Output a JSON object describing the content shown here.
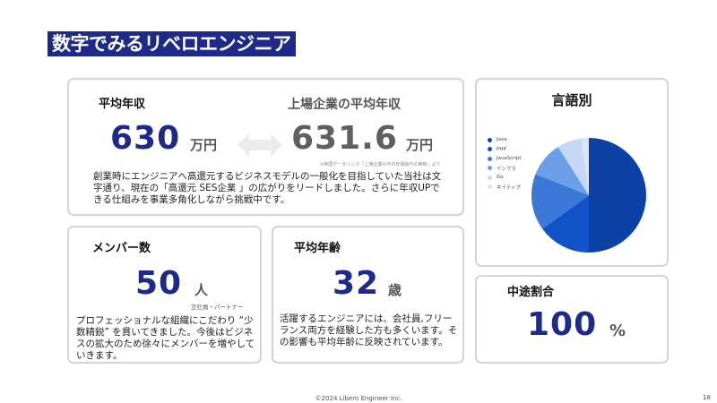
{
  "title": "数字でみるリベロエンジニア",
  "salary": {
    "label": "平均年収",
    "value": "630",
    "unit": "万円",
    "compare_label": "上場企業の平均年収",
    "compare_value": "631.6",
    "compare_unit": "万円",
    "note": "※帝国データバンク「上場企業の平均年間給与の推移」より",
    "description": "創業時にエンジニアへ高還元するビジネスモデルの一般化を目指していた当社は文字通り、現在の「高還元 SES企業 」の広がりをリードしました。さらに年収UPできる仕組みを事業多角化しながら挑戦中です。",
    "arrow_icon": "double-arrow-icon"
  },
  "members": {
    "label": "メンバー数",
    "value": "50",
    "unit": "人",
    "sub": "正社員・パートナー",
    "description": "プロフェッショナルな組織にこだわり “少数精鋭” を貫いてきました。今後はビジネスの拡大のため徐々にメンバーを増やしていきます。"
  },
  "age": {
    "label": "平均年齢",
    "value": "32",
    "unit": "歳",
    "description": "活躍するエンジニアには、会社員,フリーランス両方を経験した方も多くいます。その影響も平均年齢に反映されています。"
  },
  "midcareer": {
    "label": "中途割合",
    "value": "100",
    "unit": "%"
  },
  "chart_data": {
    "type": "pie",
    "title": "言語別",
    "legend_position": "left",
    "categories": [
      "Java",
      "PHP",
      "JavaScript",
      "インフラ",
      "Go",
      "ネイティブ"
    ],
    "values": [
      50,
      15,
      16,
      10,
      7,
      2
    ],
    "colors": [
      "#0d41a6",
      "#1152c9",
      "#3b78d8",
      "#6d9ee8",
      "#c6d8f5",
      "#dbe6f7"
    ]
  },
  "footer": "©2024 Libero Engineer Inc.",
  "page_number": "18"
}
